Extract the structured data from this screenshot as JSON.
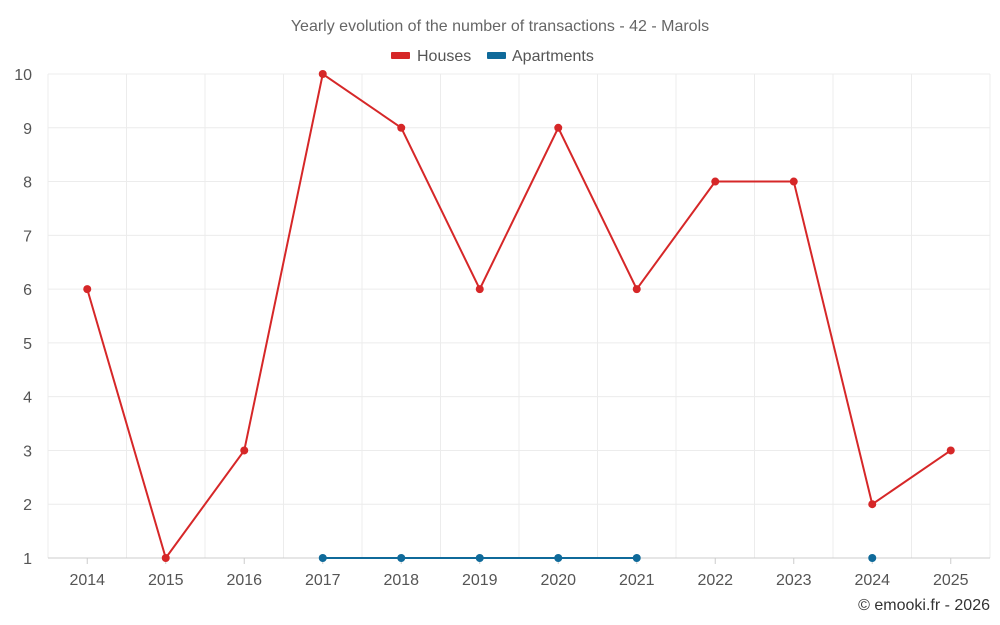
{
  "chart_data": {
    "type": "line",
    "title": "Yearly evolution of the number of transactions - 42 - Marols",
    "categories": [
      "2014",
      "2015",
      "2016",
      "2017",
      "2018",
      "2019",
      "2020",
      "2021",
      "2022",
      "2023",
      "2024",
      "2025"
    ],
    "ylim": [
      1,
      10
    ],
    "yticks": [
      "1",
      "2",
      "3",
      "4",
      "5",
      "6",
      "7",
      "8",
      "9",
      "10"
    ],
    "grid": true,
    "legend_position": "top-center",
    "series": [
      {
        "name": "Houses",
        "color": "#d62728",
        "values": [
          6,
          1,
          3,
          10,
          9,
          6,
          9,
          6,
          8,
          8,
          2,
          3
        ]
      },
      {
        "name": "Apartments",
        "color": "#0f6a9a",
        "values": [
          null,
          null,
          null,
          1,
          1,
          1,
          1,
          1,
          null,
          null,
          1,
          null
        ]
      }
    ]
  },
  "credit": "© emooki.fr - 2026"
}
